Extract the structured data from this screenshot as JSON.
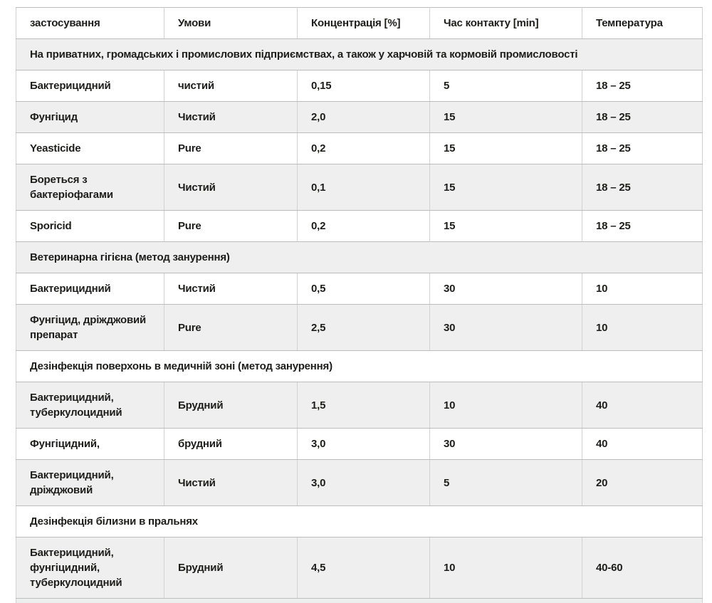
{
  "colors": {
    "row_stripe": "#efefef",
    "border_vertical": "#d2d2d2",
    "border_horizontal": "#bcbcbc",
    "text": "#1d1d1b",
    "background": "#ffffff"
  },
  "table": {
    "header": [
      "застосування",
      "Умови",
      "Концентрація [%]",
      "Час контакту [min]",
      "Температура"
    ],
    "rows": [
      {
        "type": "section",
        "label": "На приватних, громадських і промислових підприємствах, а також у харчовій та кормовій промисловості"
      },
      {
        "type": "data",
        "cells": [
          "Бактерицидний",
          "чистий",
          "0,15",
          "5",
          "18 – 25"
        ]
      },
      {
        "type": "data",
        "cells": [
          "Фунгіцид",
          "Чистий",
          "2,0",
          "15",
          "18 – 25"
        ]
      },
      {
        "type": "data",
        "cells": [
          "Yeasticide",
          "Pure",
          "0,2",
          "15",
          "18 – 25"
        ]
      },
      {
        "type": "data",
        "cells": [
          "Бореться з бактеріофагами",
          "Чистий",
          "0,1",
          "15",
          "18 – 25"
        ]
      },
      {
        "type": "data",
        "cells": [
          "Sporicid",
          "Pure",
          "0,2",
          "15",
          "18 – 25"
        ]
      },
      {
        "type": "section",
        "label": "Ветеринарна гігієна (метод занурення)"
      },
      {
        "type": "data",
        "cells": [
          "Бактерицидний",
          "Чистий",
          "0,5",
          "30",
          "10"
        ]
      },
      {
        "type": "data",
        "cells": [
          "Фунгіцид, дріжджовий препарат",
          "Pure",
          "2,5",
          "30",
          "10"
        ]
      },
      {
        "type": "section",
        "label": "Дезінфекція поверхонь в медичній зоні (метод занурення)"
      },
      {
        "type": "data",
        "cells": [
          "Бактерицидний, туберкулоцидний",
          "Брудний",
          "1,5",
          "10",
          "40"
        ]
      },
      {
        "type": "data",
        "cells": [
          "Фунгіцидний,",
          "брудний",
          "3,0",
          "30",
          "40"
        ]
      },
      {
        "type": "data",
        "cells": [
          "Бактерицидний, дріжджовий",
          "Чистий",
          "3,0",
          "5",
          "20"
        ]
      },
      {
        "type": "section",
        "label": "Дезінфекція білизни в пральнях"
      },
      {
        "type": "data",
        "cells": [
          "Бактерицидний, фунгіцидний, туберкулоцидний",
          "Брудний",
          "4,5",
          "10",
          "40-60"
        ]
      }
    ]
  }
}
